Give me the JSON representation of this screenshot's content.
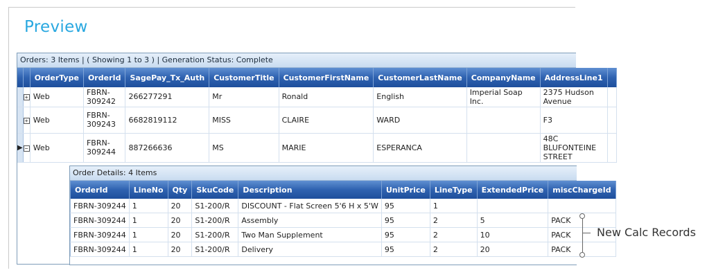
{
  "page": {
    "title": "Preview"
  },
  "orders": {
    "status": "Orders: 3 Items | ( Showing 1 to 3 ) | Generation Status: Complete",
    "columns": [
      "OrderType",
      "OrderId",
      "SagePay_Tx_Auth",
      "CustomerTitle",
      "CustomerFirstName",
      "CustomerLastName",
      "CompanyName",
      "AddressLine1"
    ],
    "rows": [
      {
        "expander": "+",
        "cells": [
          "Web",
          "FBRN-309242",
          "266277291",
          "Mr",
          "Ronald",
          "English",
          "Imperial Soap Inc.",
          "2375 Hudson Avenue"
        ]
      },
      {
        "expander": "+",
        "cells": [
          "Web",
          "FBRN-309243",
          "6682819112",
          "MISS",
          "CLAIRE",
          "WARD",
          "",
          "F3"
        ]
      },
      {
        "expander": "−",
        "current": true,
        "cells": [
          "Web",
          "FBRN-309244",
          "887266636",
          "MS",
          "MARIE",
          "ESPERANCA",
          "",
          "48C BLUFONTEINE STREET"
        ]
      }
    ]
  },
  "details": {
    "status": "Order Details: 4 Items",
    "columns": [
      "OrderId",
      "LineNo",
      "Qty",
      "SkuCode",
      "Description",
      "UnitPrice",
      "LineType",
      "ExtendedPrice",
      "miscChargeId"
    ],
    "rows": [
      [
        "FBRN-309244",
        "1",
        "20",
        "S1-200/R",
        "DISCOUNT - Flat Screen 5'6 H x 5'W",
        "95",
        "1",
        "",
        ""
      ],
      [
        "FBRN-309244",
        "1",
        "20",
        "S1-200/R",
        "Assembly",
        "95",
        "2",
        "5",
        "PACK"
      ],
      [
        "FBRN-309244",
        "1",
        "20",
        "S1-200/R",
        "Two Man Supplement",
        "95",
        "2",
        "10",
        "PACK"
      ],
      [
        "FBRN-309244",
        "1",
        "20",
        "S1-200/R",
        "Delivery",
        "95",
        "2",
        "20",
        "PACK"
      ]
    ]
  },
  "annotation": {
    "label": "New Calc Records"
  },
  "colors": {
    "title": "#29a8e0",
    "header": "#2f62b0",
    "selector": "#d7e4f3"
  }
}
